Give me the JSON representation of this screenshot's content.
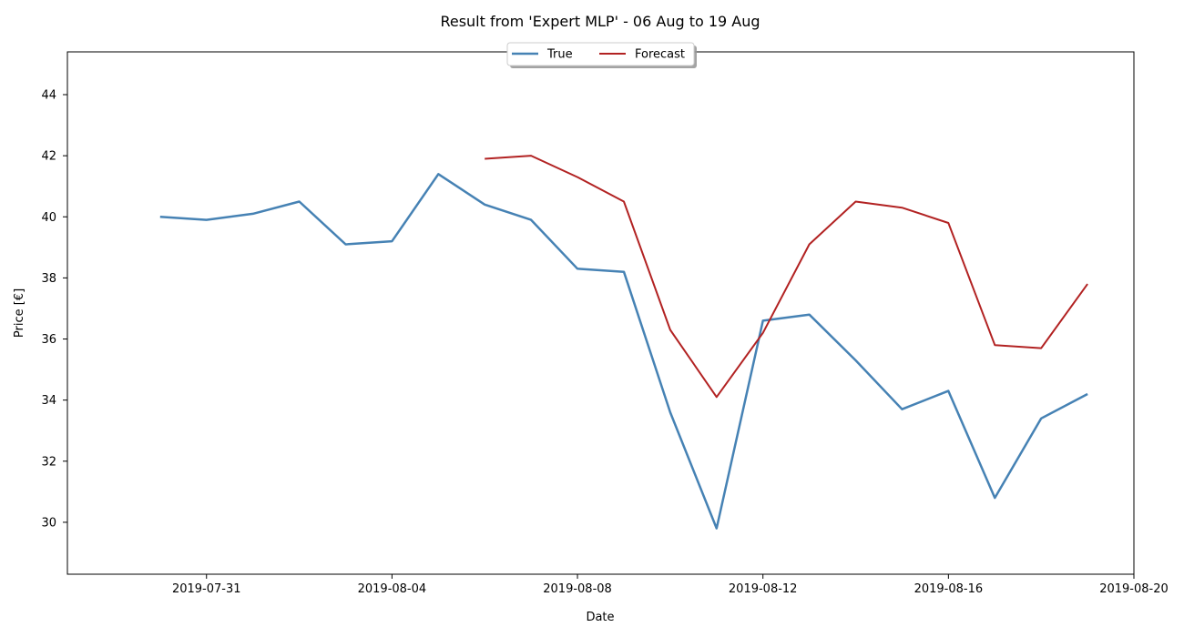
{
  "chart_data": {
    "type": "line",
    "title": "Result from 'Expert MLP' - 06 Aug to 19 Aug",
    "xlabel": "Date",
    "ylabel": "Price [€]",
    "xlim": [
      "2019-07-28",
      "2019-08-20"
    ],
    "ylim": [
      28.3,
      45.4
    ],
    "x_ticks": [
      "2019-07-31",
      "2019-08-04",
      "2019-08-08",
      "2019-08-12",
      "2019-08-16",
      "2019-08-20"
    ],
    "y_ticks": [
      30,
      32,
      34,
      36,
      38,
      40,
      42,
      44
    ],
    "grid": false,
    "legend_position": "top-center",
    "series": [
      {
        "name": "True",
        "color": "#4682b4",
        "x": [
          "2019-07-30",
          "2019-07-31",
          "2019-08-01",
          "2019-08-02",
          "2019-08-03",
          "2019-08-04",
          "2019-08-05",
          "2019-08-06",
          "2019-08-07",
          "2019-08-08",
          "2019-08-09",
          "2019-08-10",
          "2019-08-11",
          "2019-08-12",
          "2019-08-13",
          "2019-08-14",
          "2019-08-15",
          "2019-08-16",
          "2019-08-17",
          "2019-08-18",
          "2019-08-19"
        ],
        "values": [
          40.0,
          39.9,
          40.1,
          40.5,
          39.1,
          39.2,
          41.4,
          40.4,
          39.9,
          38.3,
          38.2,
          33.6,
          29.8,
          36.6,
          36.8,
          35.3,
          33.7,
          34.3,
          30.8,
          33.4,
          34.2
        ]
      },
      {
        "name": "Forecast",
        "color": "#b22222",
        "x": [
          "2019-08-06",
          "2019-08-07",
          "2019-08-08",
          "2019-08-09",
          "2019-08-10",
          "2019-08-11",
          "2019-08-12",
          "2019-08-13",
          "2019-08-14",
          "2019-08-15",
          "2019-08-16",
          "2019-08-17",
          "2019-08-18",
          "2019-08-19"
        ],
        "values": [
          41.9,
          42.0,
          41.3,
          40.5,
          36.3,
          34.1,
          36.2,
          39.1,
          40.5,
          40.3,
          39.8,
          35.8,
          35.7,
          37.8
        ]
      }
    ]
  }
}
